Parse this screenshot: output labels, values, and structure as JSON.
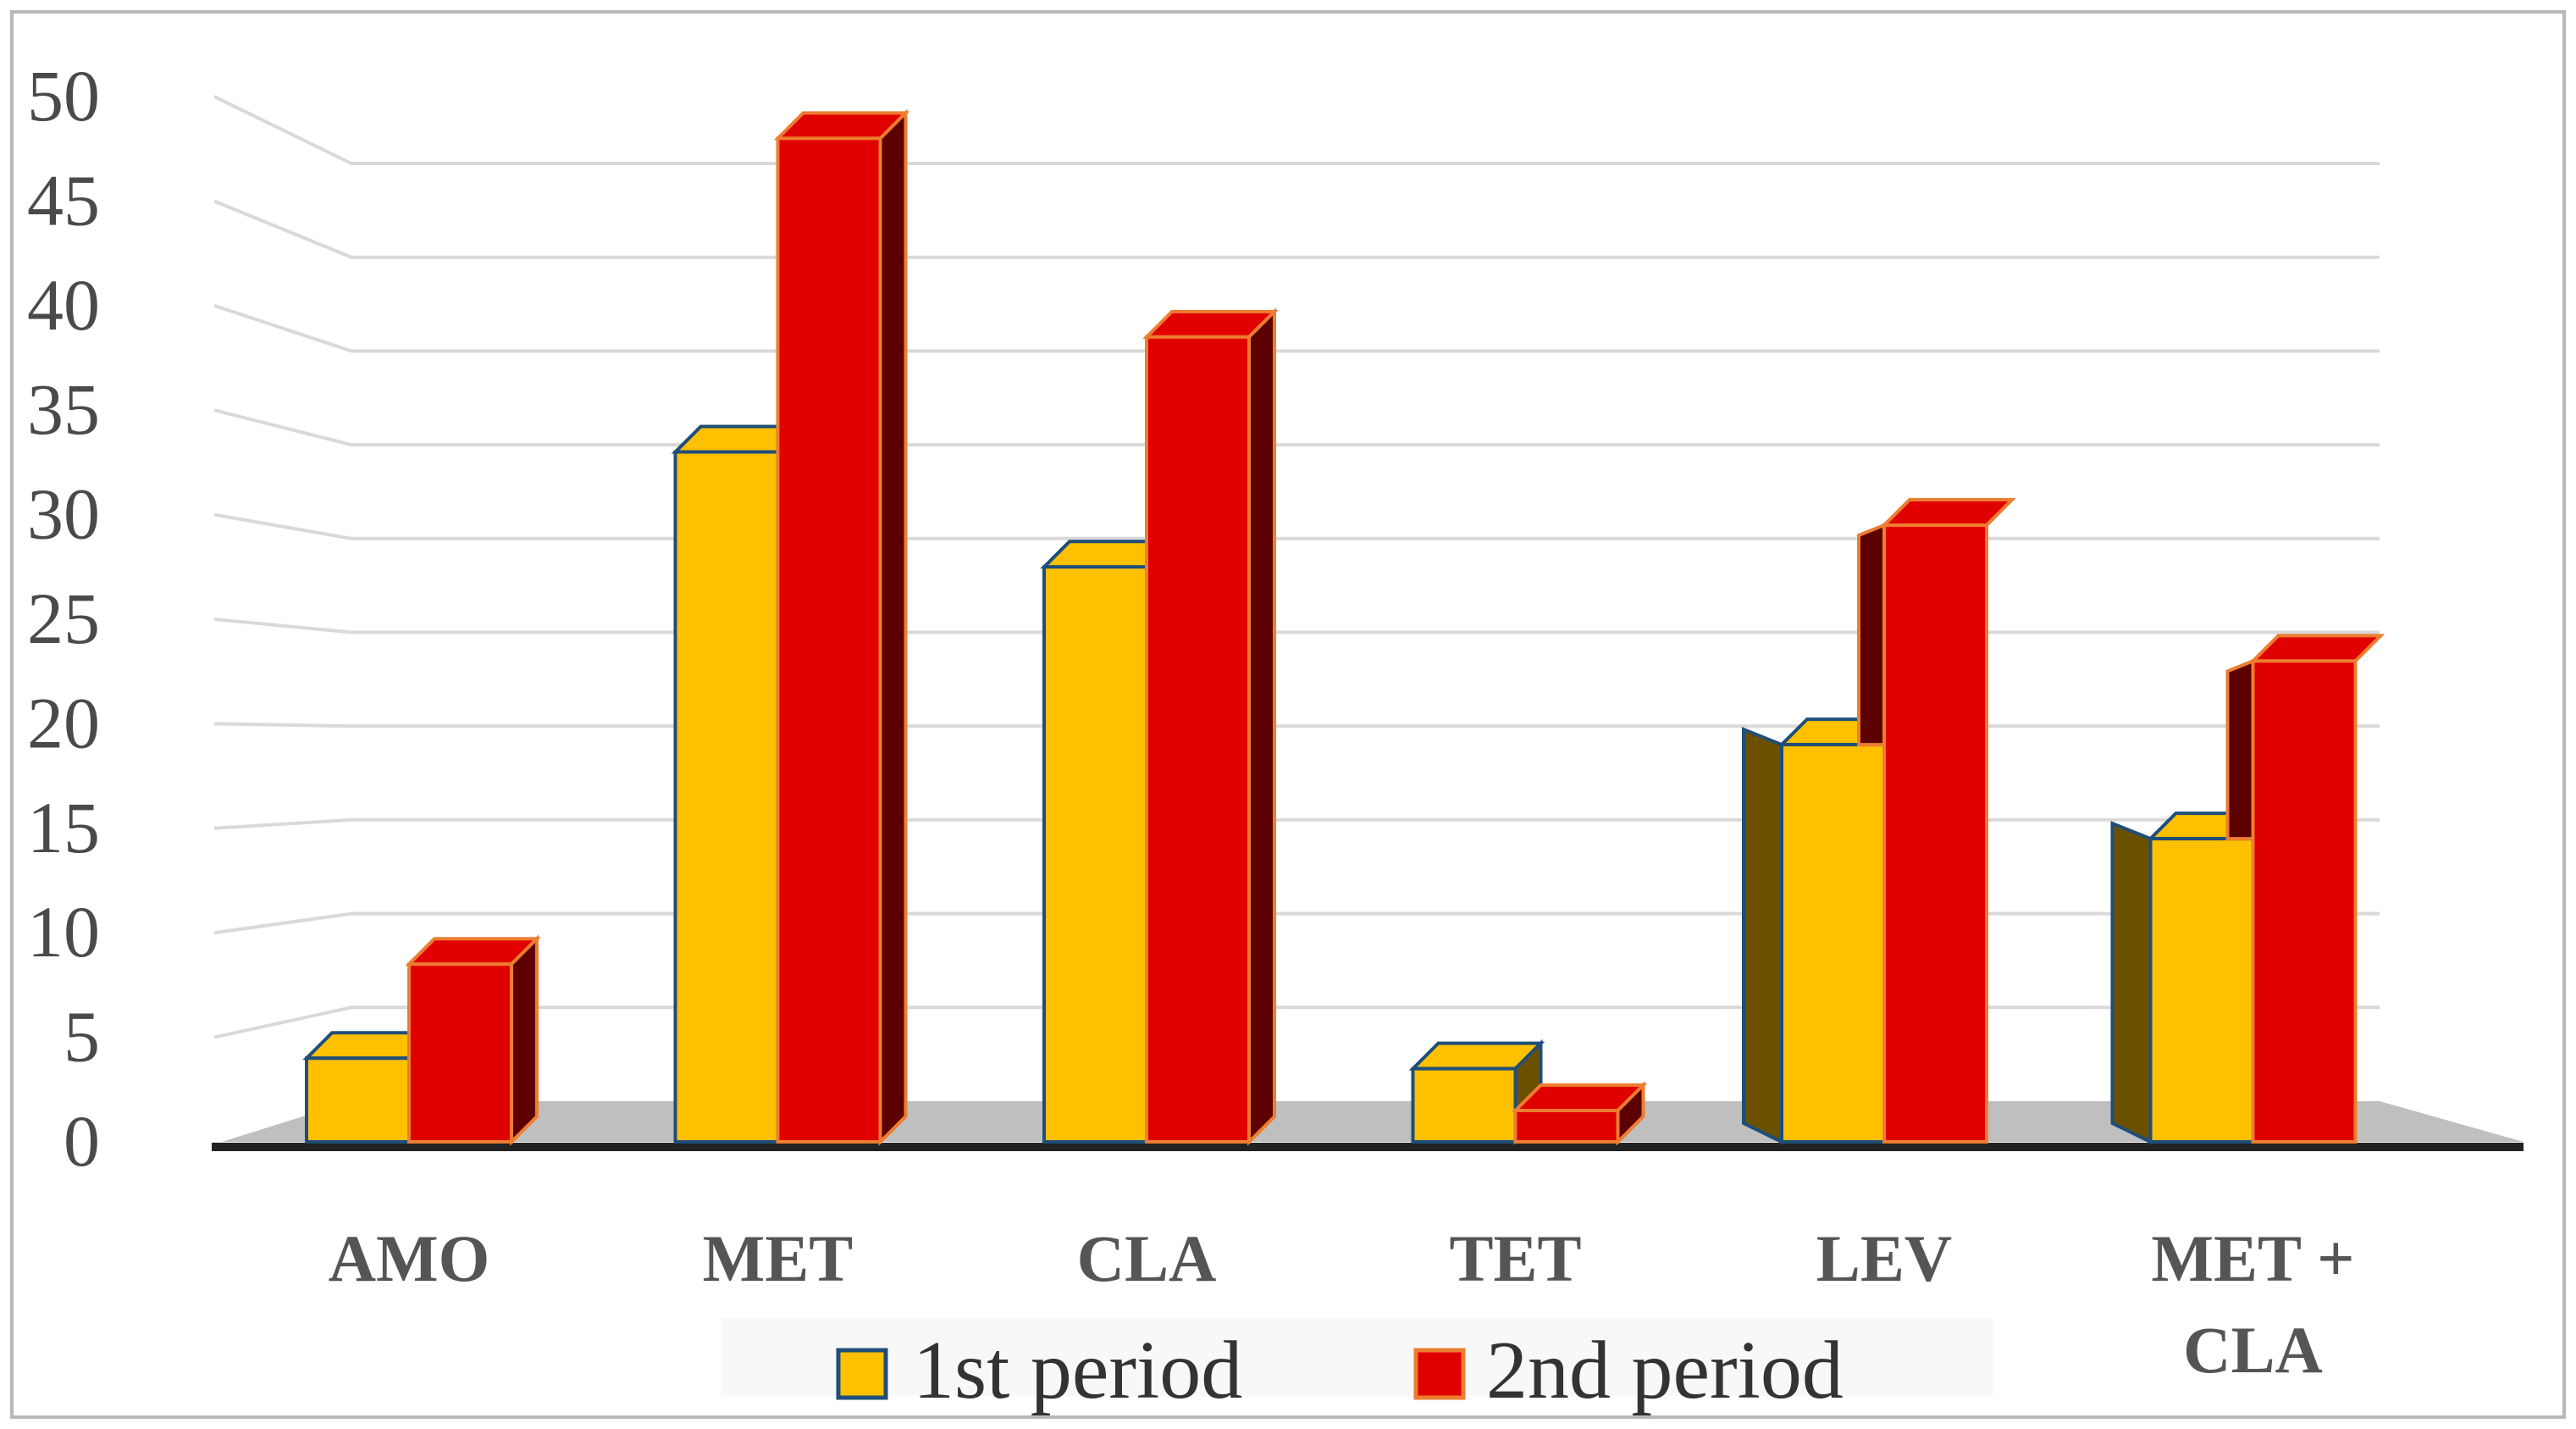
{
  "chart_data": {
    "type": "bar",
    "title": "",
    "xlabel": "",
    "ylabel": "",
    "ylim": [
      0,
      50
    ],
    "yticks": [
      0,
      5,
      10,
      15,
      20,
      25,
      30,
      35,
      40,
      45,
      50
    ],
    "categories": [
      [
        "AMO"
      ],
      [
        "MET"
      ],
      [
        "CLA"
      ],
      [
        "TET"
      ],
      [
        "LEV"
      ],
      [
        "MET +",
        "CLA"
      ]
    ],
    "series": [
      {
        "name": "1st period",
        "values": [
          4,
          33,
          27.5,
          3.5,
          19,
          14.5
        ],
        "color": "#FFC000",
        "side_color": "#6B5000",
        "border_color": "#1F4E79"
      },
      {
        "name": "2nd period",
        "values": [
          8.5,
          48,
          38.5,
          1.5,
          29.5,
          23
        ],
        "color": "#E00000",
        "side_color": "#5C0000",
        "border_color": "#ED7D31"
      }
    ],
    "legend_position": "bottom",
    "grid": true,
    "style": "3d-clustered-column"
  }
}
